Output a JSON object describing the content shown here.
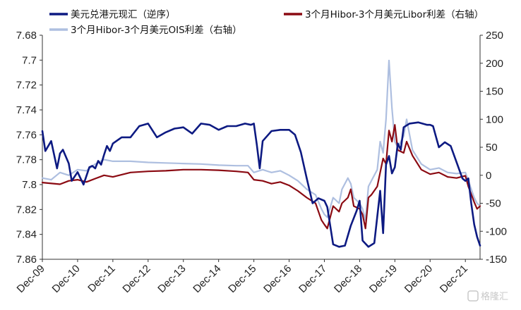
{
  "chart_data": {
    "type": "line",
    "title": "",
    "legend_placement": "top",
    "grid": false,
    "x_ticks": [
      "Dec-09",
      "Dec-10",
      "Dec-11",
      "Dec-12",
      "Dec-13",
      "Dec-14",
      "Dec-15",
      "Dec-16",
      "Dec-17",
      "Dec-18",
      "Dec-19",
      "Dec-20",
      "Dec-21"
    ],
    "y_left": {
      "min": 7.68,
      "max": 7.86,
      "inverted": true,
      "ticks": [
        "7.68",
        "7.7",
        "7.72",
        "7.74",
        "7.76",
        "7.78",
        "7.8",
        "7.82",
        "7.84",
        "7.86"
      ]
    },
    "y_right": {
      "min": -150,
      "max": 250,
      "ticks": [
        "250",
        "200",
        "150",
        "100",
        "50",
        "0",
        "-50",
        "-100",
        "-150"
      ]
    },
    "series": [
      {
        "name": "美元兑港元现汇（逆序）",
        "axis": "left",
        "color": "#0d1a82",
        "points": [
          [
            "2009-12",
            7.757
          ],
          [
            "2010-01",
            7.773
          ],
          [
            "2010-03",
            7.765
          ],
          [
            "2010-05",
            7.787
          ],
          [
            "2010-06",
            7.775
          ],
          [
            "2010-07",
            7.772
          ],
          [
            "2010-09",
            7.783
          ],
          [
            "2010-10",
            7.797
          ],
          [
            "2010-12",
            7.79
          ],
          [
            "2011-01",
            7.795
          ],
          [
            "2011-02",
            7.8
          ],
          [
            "2011-04",
            7.786
          ],
          [
            "2011-05",
            7.785
          ],
          [
            "2011-06",
            7.787
          ],
          [
            "2011-07",
            7.781
          ],
          [
            "2011-08",
            7.784
          ],
          [
            "2011-09",
            7.776
          ],
          [
            "2011-10",
            7.769
          ],
          [
            "2011-11",
            7.773
          ],
          [
            "2011-12",
            7.767
          ],
          [
            "2012-03",
            7.762
          ],
          [
            "2012-06",
            7.762
          ],
          [
            "2012-09",
            7.753
          ],
          [
            "2012-12",
            7.751
          ],
          [
            "2013-03",
            7.762
          ],
          [
            "2013-06",
            7.758
          ],
          [
            "2013-09",
            7.755
          ],
          [
            "2013-12",
            7.754
          ],
          [
            "2014-03",
            7.759
          ],
          [
            "2014-06",
            7.751
          ],
          [
            "2014-09",
            7.752
          ],
          [
            "2014-12",
            7.756
          ],
          [
            "2015-03",
            7.753
          ],
          [
            "2015-06",
            7.753
          ],
          [
            "2015-09",
            7.751
          ],
          [
            "2015-11",
            7.752
          ],
          [
            "2015-12",
            7.751
          ],
          [
            "2016-01",
            7.768
          ],
          [
            "2016-02",
            7.787
          ],
          [
            "2016-03",
            7.765
          ],
          [
            "2016-06",
            7.757
          ],
          [
            "2016-09",
            7.756
          ],
          [
            "2016-12",
            7.756
          ],
          [
            "2017-02",
            7.76
          ],
          [
            "2017-04",
            7.774
          ],
          [
            "2017-06",
            7.795
          ],
          [
            "2017-08",
            7.815
          ],
          [
            "2017-10",
            7.811
          ],
          [
            "2017-12",
            7.813
          ],
          [
            "2018-01",
            7.818
          ],
          [
            "2018-03",
            7.848
          ],
          [
            "2018-05",
            7.85
          ],
          [
            "2018-07",
            7.849
          ],
          [
            "2018-09",
            7.833
          ],
          [
            "2018-11",
            7.821
          ],
          [
            "2018-12",
            7.813
          ],
          [
            "2019-01",
            7.845
          ],
          [
            "2019-03",
            7.85
          ],
          [
            "2019-05",
            7.847
          ],
          [
            "2019-07",
            7.805
          ],
          [
            "2019-08",
            7.839
          ],
          [
            "2019-09",
            7.784
          ],
          [
            "2019-10",
            7.777
          ],
          [
            "2019-11",
            7.791
          ],
          [
            "2019-12",
            7.786
          ],
          [
            "2020-01",
            7.767
          ],
          [
            "2020-02",
            7.772
          ],
          [
            "2020-03",
            7.754
          ],
          [
            "2020-05",
            7.751
          ],
          [
            "2020-08",
            7.75
          ],
          [
            "2020-11",
            7.752
          ],
          [
            "2020-12",
            7.752
          ],
          [
            "2021-01",
            7.753
          ],
          [
            "2021-03",
            7.77
          ],
          [
            "2021-05",
            7.766
          ],
          [
            "2021-07",
            7.769
          ],
          [
            "2021-09",
            7.782
          ],
          [
            "2021-11",
            7.795
          ],
          [
            "2021-12",
            7.797
          ],
          [
            "2022-01",
            7.795
          ],
          [
            "2022-02",
            7.815
          ],
          [
            "2022-03",
            7.832
          ],
          [
            "2022-04",
            7.842
          ],
          [
            "2022-05",
            7.849
          ]
        ]
      },
      {
        "name": "3个月Hibor-3个月美元Libor利差（右轴）",
        "axis": "right",
        "color": "#8b0a12",
        "points": [
          [
            "2009-12",
            -13
          ],
          [
            "2010-06",
            -16
          ],
          [
            "2010-09",
            -10
          ],
          [
            "2010-12",
            -8
          ],
          [
            "2011-03",
            -12
          ],
          [
            "2011-06",
            -6
          ],
          [
            "2011-09",
            0
          ],
          [
            "2011-12",
            -3
          ],
          [
            "2012-06",
            5
          ],
          [
            "2012-12",
            7
          ],
          [
            "2013-06",
            8
          ],
          [
            "2013-12",
            10
          ],
          [
            "2014-06",
            10
          ],
          [
            "2014-12",
            9
          ],
          [
            "2015-06",
            7
          ],
          [
            "2015-10",
            5
          ],
          [
            "2015-12",
            -8
          ],
          [
            "2016-03",
            -10
          ],
          [
            "2016-06",
            -15
          ],
          [
            "2016-09",
            -12
          ],
          [
            "2016-12",
            -18
          ],
          [
            "2017-03",
            -28
          ],
          [
            "2017-06",
            -40
          ],
          [
            "2017-09",
            -50
          ],
          [
            "2017-11",
            -80
          ],
          [
            "2017-12",
            -88
          ],
          [
            "2018-01",
            -95
          ],
          [
            "2018-03",
            -55
          ],
          [
            "2018-05",
            -65
          ],
          [
            "2018-06",
            -50
          ],
          [
            "2018-08",
            -40
          ],
          [
            "2018-09",
            -25
          ],
          [
            "2018-10",
            -55
          ],
          [
            "2018-12",
            -60
          ],
          [
            "2019-01",
            -70
          ],
          [
            "2019-02",
            -95
          ],
          [
            "2019-03",
            -40
          ],
          [
            "2019-04",
            -35
          ],
          [
            "2019-06",
            -20
          ],
          [
            "2019-07",
            5
          ],
          [
            "2019-08",
            30
          ],
          [
            "2019-09",
            20
          ],
          [
            "2019-10",
            80
          ],
          [
            "2019-11",
            60
          ],
          [
            "2019-12",
            90
          ],
          [
            "2020-01",
            45
          ],
          [
            "2020-03",
            40
          ],
          [
            "2020-04",
            60
          ],
          [
            "2020-06",
            35
          ],
          [
            "2020-09",
            10
          ],
          [
            "2020-12",
            2
          ],
          [
            "2021-03",
            5
          ],
          [
            "2021-06",
            -3
          ],
          [
            "2021-09",
            -5
          ],
          [
            "2021-12",
            -1
          ],
          [
            "2022-01",
            -20
          ],
          [
            "2022-03",
            -48
          ],
          [
            "2022-04",
            -60
          ],
          [
            "2022-05",
            -55
          ]
        ]
      },
      {
        "name": "3个月Hibor-3个月美元OIS利差（右轴）",
        "axis": "right",
        "color": "#aebfe0",
        "points": [
          [
            "2009-12",
            -5
          ],
          [
            "2010-03",
            -8
          ],
          [
            "2010-06",
            5
          ],
          [
            "2010-09",
            0
          ],
          [
            "2010-12",
            10
          ],
          [
            "2011-03",
            8
          ],
          [
            "2011-06",
            20
          ],
          [
            "2011-09",
            28
          ],
          [
            "2011-12",
            25
          ],
          [
            "2012-06",
            25
          ],
          [
            "2012-12",
            23
          ],
          [
            "2013-06",
            22
          ],
          [
            "2013-12",
            21
          ],
          [
            "2014-06",
            20
          ],
          [
            "2014-12",
            18
          ],
          [
            "2015-06",
            17
          ],
          [
            "2015-10",
            17
          ],
          [
            "2015-12",
            5
          ],
          [
            "2016-03",
            10
          ],
          [
            "2016-06",
            5
          ],
          [
            "2016-09",
            8
          ],
          [
            "2016-12",
            0
          ],
          [
            "2017-03",
            -10
          ],
          [
            "2017-06",
            -25
          ],
          [
            "2017-09",
            -35
          ],
          [
            "2017-11",
            -60
          ],
          [
            "2017-12",
            -70
          ],
          [
            "2018-01",
            -75
          ],
          [
            "2018-03",
            -40
          ],
          [
            "2018-05",
            -50
          ],
          [
            "2018-06",
            -25
          ],
          [
            "2018-08",
            -5
          ],
          [
            "2018-09",
            -15
          ],
          [
            "2018-10",
            -40
          ],
          [
            "2018-12",
            -50
          ],
          [
            "2019-01",
            -60
          ],
          [
            "2019-02",
            -80
          ],
          [
            "2019-03",
            -20
          ],
          [
            "2019-04",
            -10
          ],
          [
            "2019-06",
            10
          ],
          [
            "2019-07",
            60
          ],
          [
            "2019-08",
            40
          ],
          [
            "2019-09",
            100
          ],
          [
            "2019-10",
            205
          ],
          [
            "2019-11",
            120
          ],
          [
            "2019-12",
            60
          ],
          [
            "2020-01",
            50
          ],
          [
            "2020-03",
            70
          ],
          [
            "2020-04",
            100
          ],
          [
            "2020-06",
            45
          ],
          [
            "2020-09",
            20
          ],
          [
            "2020-12",
            10
          ],
          [
            "2021-03",
            13
          ],
          [
            "2021-06",
            5
          ],
          [
            "2021-09",
            3
          ],
          [
            "2021-12",
            5
          ],
          [
            "2022-01",
            -10
          ],
          [
            "2022-03",
            -40
          ],
          [
            "2022-04",
            -50
          ],
          [
            "2022-05",
            -55
          ]
        ]
      }
    ]
  },
  "watermark": "格隆汇"
}
